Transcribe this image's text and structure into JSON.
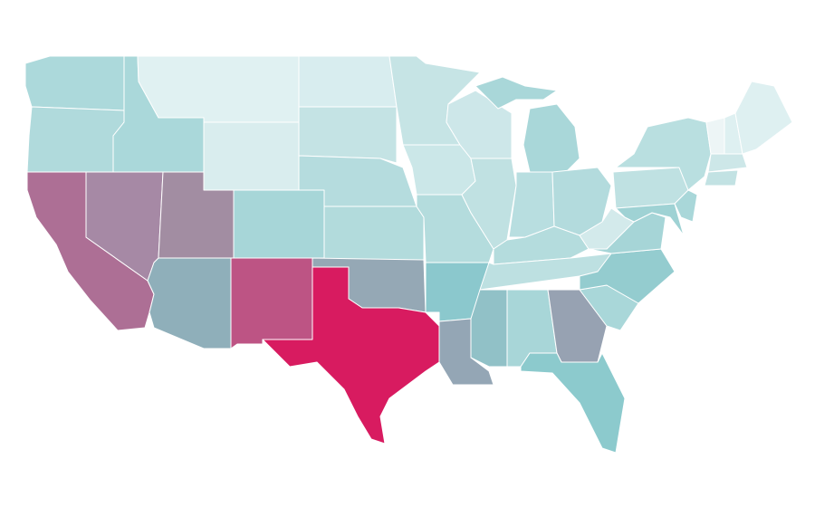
{
  "map": {
    "fills": [
      "#acd9db",
      "#b0dadc",
      "#ad6f95",
      "#a689a5",
      "#aad8da",
      "#e0f1f2",
      "#d9edee",
      "#a28da2",
      "#a7d6d8",
      "#bd5484",
      "#8fafba",
      "#d8edef",
      "#c4e3e4",
      "#b5dcde",
      "#b2dbdc",
      "#95a8b5",
      "#d81b60",
      "#c6e4e5",
      "#cbe7e8",
      "#b4dcdd",
      "#8bc8cd",
      "#94a6b5",
      "#cde7e9",
      "#c0e1e2",
      "#a9d7d9",
      "#a9d7d9",
      "#b8dee0",
      "#b3dbdd",
      "#b4dcdd",
      "#bde0e1",
      "#91c1c7",
      "#a8d6d8",
      "#97a2b2",
      "#8ccacd",
      "#a9d7d9",
      "#94cccf",
      "#a6d5d7",
      "#d3eaeb",
      "#bfe1e2",
      "#b9dfe0",
      "#9fd2d4",
      "#a9d7d9",
      "#edf5f6",
      "#def0f1",
      "#def0f1",
      "#cde7e8",
      "#c2e2e3"
    ]
  }
}
